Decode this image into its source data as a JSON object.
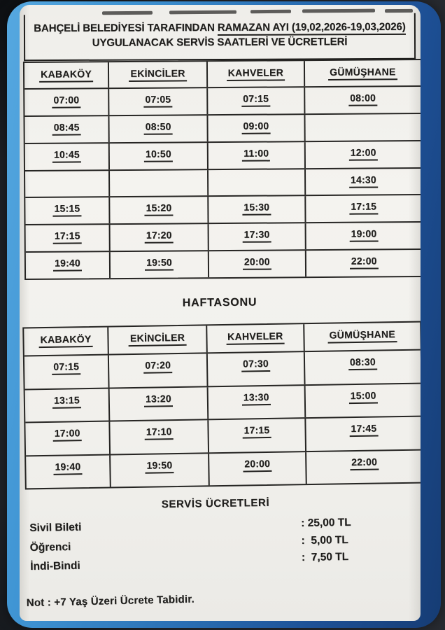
{
  "colors": {
    "ink": "#1f1e1c",
    "paper": "#f2f1ed",
    "bg": "#23262b",
    "frame_blue_light": "#56a8e0",
    "frame_blue_dark": "#163c74"
  },
  "document": {
    "title_prefix": "BAHÇELİ BELEDİYESİ TARAFINDAN",
    "title_underlined": "RAMAZAN AYI (19,02,2026-19,03,2026)",
    "title_line2": "UYGULANACAK SERVİS SAATLERİ VE ÜCRETLERİ",
    "tables": [
      {
        "id": "weekday",
        "columns": [
          "KABAKÖY",
          "EKİNCİLER",
          "KAHVELER",
          "GÜMÜŞHANE"
        ],
        "rows": [
          [
            "07:00",
            "07:05",
            "07:15",
            "08:00"
          ],
          [
            "08:45",
            "08:50",
            "09:00",
            ""
          ],
          [
            "10:45",
            "10:50",
            "11:00",
            "12:00"
          ],
          [
            "",
            "",
            "",
            "14:30"
          ],
          [
            "15:15",
            "15:20",
            "15:30",
            "17:15"
          ],
          [
            "17:15",
            "17:20",
            "17:30",
            "19:00"
          ],
          [
            "19:40",
            "19:50",
            "20:00",
            "22:00"
          ]
        ]
      },
      {
        "id": "weekend",
        "columns": [
          "KABAKÖY",
          "EKİNCİLER",
          "KAHVELER",
          "GÜMÜŞHANE"
        ],
        "rows": [
          [
            "07:15",
            "07:20",
            "07:30",
            "08:30"
          ],
          [
            "13:15",
            "13:20",
            "13:30",
            "15:00"
          ],
          [
            "17:00",
            "17:10",
            "17:15",
            "17:45"
          ],
          [
            "19:40",
            "19:50",
            "20:00",
            "22:00"
          ]
        ]
      }
    ],
    "weekend_heading": "HAFTASONU",
    "fees_heading": "SERVİS ÜCRETLERİ",
    "fees": [
      {
        "label": "Sivil Bileti",
        "price": ": 25,00 TL"
      },
      {
        "label": "Öğrenci",
        "price": ":  5,00 TL"
      },
      {
        "label": "İndi-Bindi",
        "price": ":  7,50 TL"
      }
    ],
    "note": "Not : +7 Yaş Üzeri Ücrete Tabidir."
  }
}
